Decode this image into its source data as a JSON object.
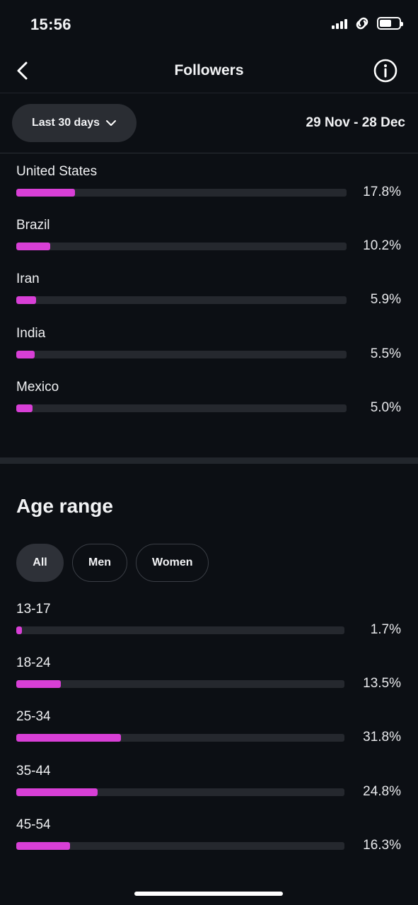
{
  "status_bar": {
    "time": "15:56",
    "battery_level": 0.6
  },
  "nav": {
    "title": "Followers",
    "back_icon": "chevron-left-icon",
    "info_icon": "info-circle-icon"
  },
  "filter": {
    "range_label": "Last 30 days",
    "range_icon": "chevron-down-icon",
    "date_range": "29 Nov - 28 Dec"
  },
  "countries": [
    {
      "label": "United States",
      "value": "17.8%",
      "pct": 17.8
    },
    {
      "label": "Brazil",
      "value": "10.2%",
      "pct": 10.2
    },
    {
      "label": "Iran",
      "value": "5.9%",
      "pct": 5.9
    },
    {
      "label": "India",
      "value": "5.5%",
      "pct": 5.5
    },
    {
      "label": "Mexico",
      "value": "5.0%",
      "pct": 5.0
    }
  ],
  "age": {
    "title": "Age range",
    "segments": [
      {
        "label": "All",
        "active": true
      },
      {
        "label": "Men",
        "active": false
      },
      {
        "label": "Women",
        "active": false
      }
    ],
    "ranges": [
      {
        "label": "13-17",
        "value": "1.7%",
        "pct": 1.7
      },
      {
        "label": "18-24",
        "value": "13.5%",
        "pct": 13.5
      },
      {
        "label": "25-34",
        "value": "31.8%",
        "pct": 31.8
      },
      {
        "label": "35-44",
        "value": "24.8%",
        "pct": 24.8
      },
      {
        "label": "45-54",
        "value": "16.3%",
        "pct": 16.3
      }
    ]
  },
  "colors": {
    "bar_fill": "#d83fd6",
    "bar_track": "#25282e",
    "background": "#0c0f14"
  }
}
